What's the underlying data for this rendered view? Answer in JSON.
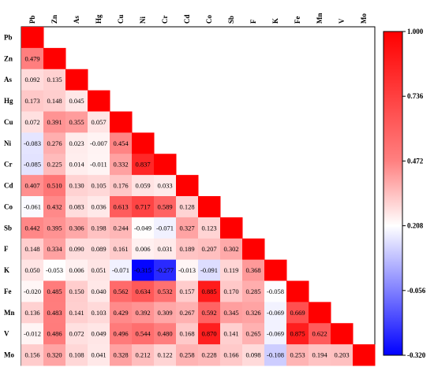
{
  "chart_data": {
    "type": "heatmap",
    "title": "",
    "variables": [
      "Pb",
      "Zn",
      "As",
      "Hg",
      "Cu",
      "Ni",
      "Cr",
      "Cd",
      "Co",
      "Sb",
      "F",
      "K",
      "Fe",
      "Mn",
      "V",
      "Mo"
    ],
    "lower_triangle_values": [
      [],
      [
        "0.479"
      ],
      [
        "0.092",
        "0.135"
      ],
      [
        "0.173",
        "0.148",
        "0.045"
      ],
      [
        "0.072",
        "0.391",
        "0.355",
        "0.057"
      ],
      [
        "-0.083",
        "0.276",
        "0.023",
        "-0.007",
        "0.454"
      ],
      [
        "-0.085",
        "0.225",
        "0.014",
        "-0.011",
        "0.332",
        "0.837"
      ],
      [
        "0.407",
        "0.510",
        "0.130",
        "0.105",
        "0.176",
        "0.059",
        "0.033"
      ],
      [
        "-0.061",
        "0.432",
        "0.083",
        "0.036",
        "0.613",
        "0.717",
        "0.589",
        "0.128"
      ],
      [
        "0.442",
        "0.395",
        "0.306",
        "0.198",
        "0.244",
        "-0.049",
        "-0.071",
        "0.327",
        "0.123"
      ],
      [
        "0.148",
        "0.334",
        "0.090",
        "0.089",
        "0.161",
        "0.006",
        "0.031",
        "0.189",
        "0.207",
        "0.302"
      ],
      [
        "0.050",
        "-0.053",
        "0.006",
        "0.051",
        "-0.071",
        "-0.315",
        "-0.277",
        "-0.013",
        "-0.091",
        "0.119",
        "0.368"
      ],
      [
        "-0.020",
        "0.485",
        "0.150",
        "0.040",
        "0.562",
        "0.634",
        "0.532",
        "0.157",
        "0.885",
        "0.170",
        "0.285",
        "-0.058"
      ],
      [
        "0.136",
        "0.483",
        "0.141",
        "0.103",
        "0.429",
        "0.392",
        "0.309",
        "0.267",
        "0.592",
        "0.345",
        "0.326",
        "-0.069",
        "0.669"
      ],
      [
        "-0.012",
        "0.486",
        "0.072",
        "0.049",
        "0.496",
        "0.544",
        "0.480",
        "0.168",
        "0.870",
        "0.141",
        "0.265",
        "-0.069",
        "0.875",
        "0.622"
      ],
      [
        "0.156",
        "0.320",
        "0.108",
        "0.041",
        "0.328",
        "0.212",
        "0.122",
        "0.258",
        "0.228",
        "0.166",
        "0.098",
        "-0.108",
        "0.253",
        "0.194",
        "0.203"
      ]
    ],
    "diagonal_value": 1.0,
    "colorbar": {
      "min": -0.32,
      "max": 1.0,
      "ticks": [
        "1.000",
        "0.736",
        "0.472",
        "0.208",
        "-0.056",
        "-0.320"
      ],
      "colors": {
        "low": "#0000ff",
        "mid": "#ffffff",
        "high": "#ff0000"
      }
    },
    "legend_position": "right"
  }
}
